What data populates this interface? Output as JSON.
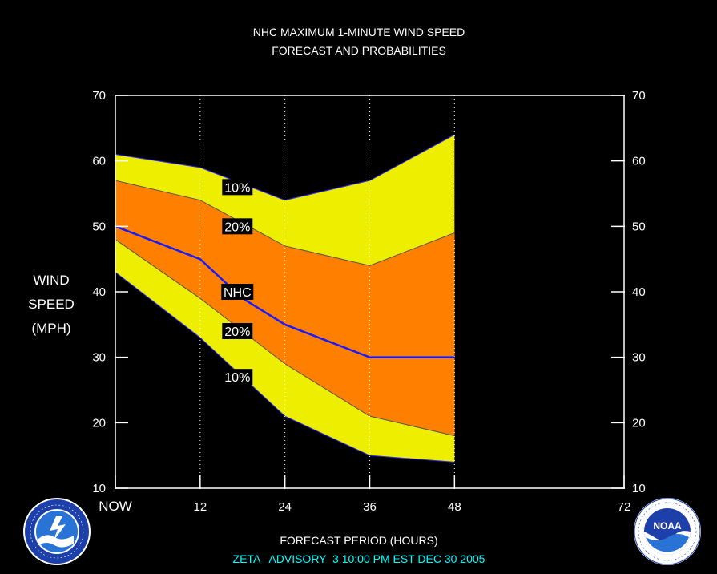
{
  "chart_data": {
    "type": "area",
    "title": "NHC MAXIMUM 1-MINUTE WIND SPEED",
    "subtitle": "FORECAST AND PROBABILITIES",
    "ylabel": [
      "WIND",
      "SPEED",
      "(MPH)"
    ],
    "xlabel": "FORECAST PERIOD (HOURS)",
    "footer": "ZETA   ADVISORY  3 10:00 PM EST DEC 30 2005",
    "xlim": [
      0,
      72
    ],
    "ylim": [
      10,
      70
    ],
    "yticks": [
      "10",
      "20",
      "30",
      "40",
      "50",
      "60",
      "70"
    ],
    "xticks": [
      {
        "x": 0,
        "label": "NOW"
      },
      {
        "x": 12,
        "label": "12"
      },
      {
        "x": 24,
        "label": "24"
      },
      {
        "x": 36,
        "label": "36"
      },
      {
        "x": 48,
        "label": "48"
      },
      {
        "x": 72,
        "label": "72"
      }
    ],
    "x": [
      0,
      12,
      24,
      36,
      48
    ],
    "bands": {
      "upper10": [
        61,
        59,
        54,
        57,
        64
      ],
      "upper20": [
        57,
        54,
        47,
        44,
        49
      ],
      "lower20": [
        48,
        39,
        29,
        21,
        18
      ],
      "lower10": [
        43,
        33,
        21,
        15,
        14
      ]
    },
    "nhc_forecast": {
      "x": [
        0,
        12,
        18,
        24,
        36,
        48
      ],
      "y": [
        50,
        45,
        39,
        35,
        30,
        30
      ]
    },
    "band_labels": [
      {
        "text": "10%",
        "x": 15,
        "y": 56
      },
      {
        "text": "20%",
        "x": 15,
        "y": 50
      },
      {
        "text": "NHC",
        "x": 15,
        "y": 40
      },
      {
        "text": "20%",
        "x": 15,
        "y": 34
      },
      {
        "text": "10%",
        "x": 15,
        "y": 27
      }
    ],
    "colors": {
      "outer": "#eeee00",
      "inner": "#ff8000",
      "nhc": "#1a1aff",
      "footer": "#00ffff",
      "axis": "#ffffff",
      "grid": "#ffffff"
    },
    "grid": "vertical dotted at 12, 24, 36, 48"
  },
  "logos": {
    "left": {
      "icon": "nws-logo",
      "text": "NATIONAL WEATHER SERVICE"
    },
    "right": {
      "icon": "noaa-logo",
      "text": "NOAA"
    }
  }
}
